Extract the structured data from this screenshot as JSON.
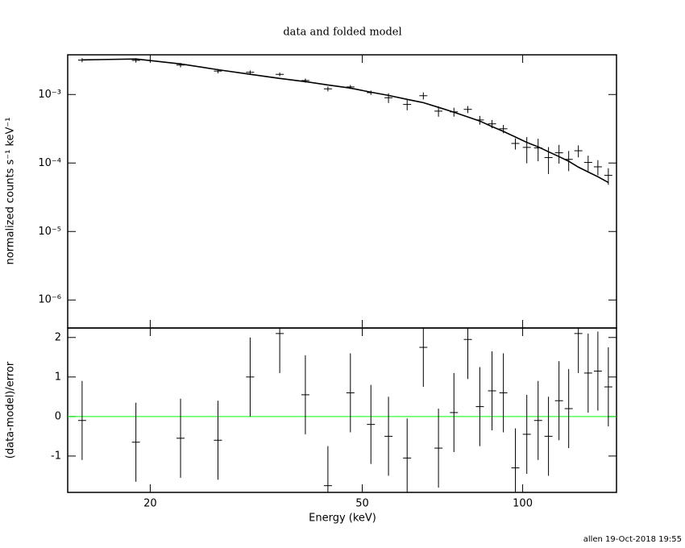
{
  "chart_data": [
    {
      "type": "errorbar",
      "title": "data and folded model",
      "y_label": "normalized counts s⁻¹ keV⁻¹",
      "x": [
        14.9,
        18.8,
        22.8,
        26.8,
        30.8,
        35.0,
        39.1,
        43.1,
        47.5,
        51.9,
        56.0,
        60.7,
        65.1,
        69.5,
        74.3,
        78.9,
        83.1,
        87.6,
        92.0,
        96.9,
        101.8,
        106.9,
        111.8,
        117.0,
        122.0,
        127.2,
        132.7,
        138.4,
        144.8
      ],
      "values": [
        0.00318,
        0.00315,
        0.00269,
        0.0022,
        0.00211,
        0.00197,
        0.0016,
        0.00121,
        0.00129,
        0.001065,
        0.000897,
        0.000716,
        0.00096,
        0.000572,
        0.000558,
        0.000607,
        0.000425,
        0.000373,
        0.000316,
        0.000193,
        0.000169,
        0.000166,
        0.00012,
        0.000141,
        0.000113,
        0.000151,
        0.000102,
        8.8e-05,
        6.6e-05
      ],
      "errors": [
        0.00022,
        0.00023,
        0.0002,
        0.00016,
        0.00014,
        0.00012,
        0.00011,
        9.7e-05,
        8.7e-05,
        7.6e-05,
        0.000146,
        0.000128,
        0.000114,
        9.8e-05,
        8.3e-05,
        7.1e-05,
        6.2e-05,
        5.1e-05,
        4.4e-05,
        3.6e-05,
        7e-05,
        6e-05,
        5.1e-05,
        4.3e-05,
        3.7e-05,
        3e-05,
        2.6e-05,
        2.2e-05,
        1.8e-05
      ],
      "model": [
        0.0032,
        0.0033,
        0.0028,
        0.0023,
        0.00197,
        0.00172,
        0.00154,
        0.00138,
        0.00124,
        0.00108,
        0.00097,
        0.00085,
        0.00076,
        0.00065,
        0.00055,
        0.00047,
        0.00041,
        0.00034,
        0.00029,
        0.00024,
        0.0002,
        0.000172,
        0.000146,
        0.000124,
        0.000106,
        8.7e-05,
        7.4e-05,
        6.3e-05,
        5.2e-05
      ],
      "color": "#000000",
      "log_x": true,
      "log_y": true,
      "xlim": [
        14,
        150
      ],
      "xticks": [
        20,
        50,
        100
      ],
      "ylim": [
        3.9e-07,
        0.0038
      ],
      "yticks": [
        {
          "value": 1e-06,
          "label": "10⁻⁶"
        },
        {
          "value": 1e-05,
          "label": "10⁻⁵"
        },
        {
          "value": 0.0001,
          "label": "10⁻⁴"
        },
        {
          "value": 0.001,
          "label": "10⁻³"
        }
      ]
    },
    {
      "type": "errorbar",
      "x_label": "Energy (keV)",
      "y_label": "(data-model)/error",
      "x": [
        14.9,
        18.8,
        22.8,
        26.8,
        30.8,
        35.0,
        39.1,
        43.1,
        47.5,
        51.9,
        56.0,
        60.7,
        65.1,
        69.5,
        74.3,
        78.9,
        83.1,
        87.6,
        92.0,
        96.9,
        101.8,
        106.9,
        111.8,
        117.0,
        122.0,
        127.2,
        132.7,
        138.4,
        144.8
      ],
      "values": [
        -0.1,
        -0.65,
        -0.55,
        -0.6,
        1.0,
        2.1,
        0.55,
        -1.75,
        0.6,
        -0.2,
        -0.5,
        -1.05,
        1.75,
        -0.8,
        0.1,
        1.95,
        0.25,
        0.65,
        0.6,
        -1.3,
        -0.45,
        -0.1,
        -0.5,
        0.4,
        0.2,
        2.1,
        1.1,
        1.15,
        0.75
      ],
      "errors": [
        1,
        1,
        1,
        1,
        1,
        1,
        1,
        1,
        1,
        1,
        1,
        1,
        1,
        1,
        1,
        1,
        1,
        1,
        1,
        1,
        1,
        1,
        1,
        1,
        1,
        1,
        1,
        1,
        1
      ],
      "color": "#000000",
      "log_x": true,
      "log_y": false,
      "xlim": [
        14,
        150
      ],
      "xticks": [
        20,
        50,
        100
      ],
      "ylim": [
        -1.92,
        2.24
      ],
      "yticks": [
        -1,
        0,
        1,
        2
      ],
      "ref_line": {
        "value": 0,
        "color": "#00ff00"
      }
    }
  ],
  "footer": "allen 19-Oct-2018 19:55"
}
